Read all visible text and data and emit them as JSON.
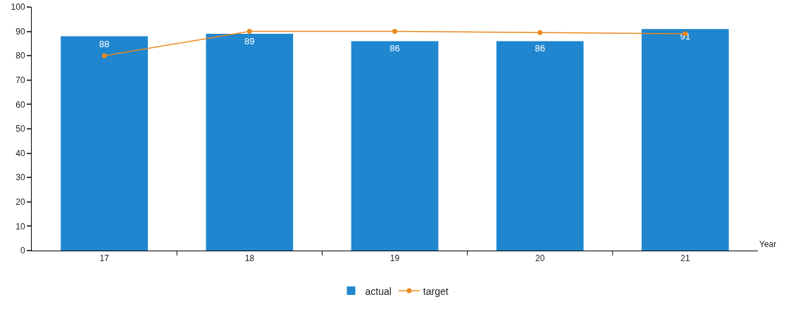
{
  "chart_data": {
    "type": "bar",
    "xlabel": "Year",
    "categories": [
      "17",
      "18",
      "19",
      "20",
      "21"
    ],
    "series": [
      {
        "name": "actual",
        "color": "#1f86cf",
        "values": [
          88,
          89,
          86,
          86,
          91
        ],
        "value_labels": [
          "88",
          "89",
          "86",
          "86",
          "91"
        ]
      },
      {
        "name": "target",
        "type": "line",
        "color": "#e8891e",
        "values": [
          80,
          90,
          90,
          89.5,
          89
        ],
        "marker": "circle"
      }
    ],
    "ylim": [
      0,
      100
    ],
    "yticks": [
      0,
      10,
      20,
      30,
      40,
      50,
      60,
      70,
      80,
      90,
      100
    ],
    "grid": false,
    "legend": "bottom"
  }
}
